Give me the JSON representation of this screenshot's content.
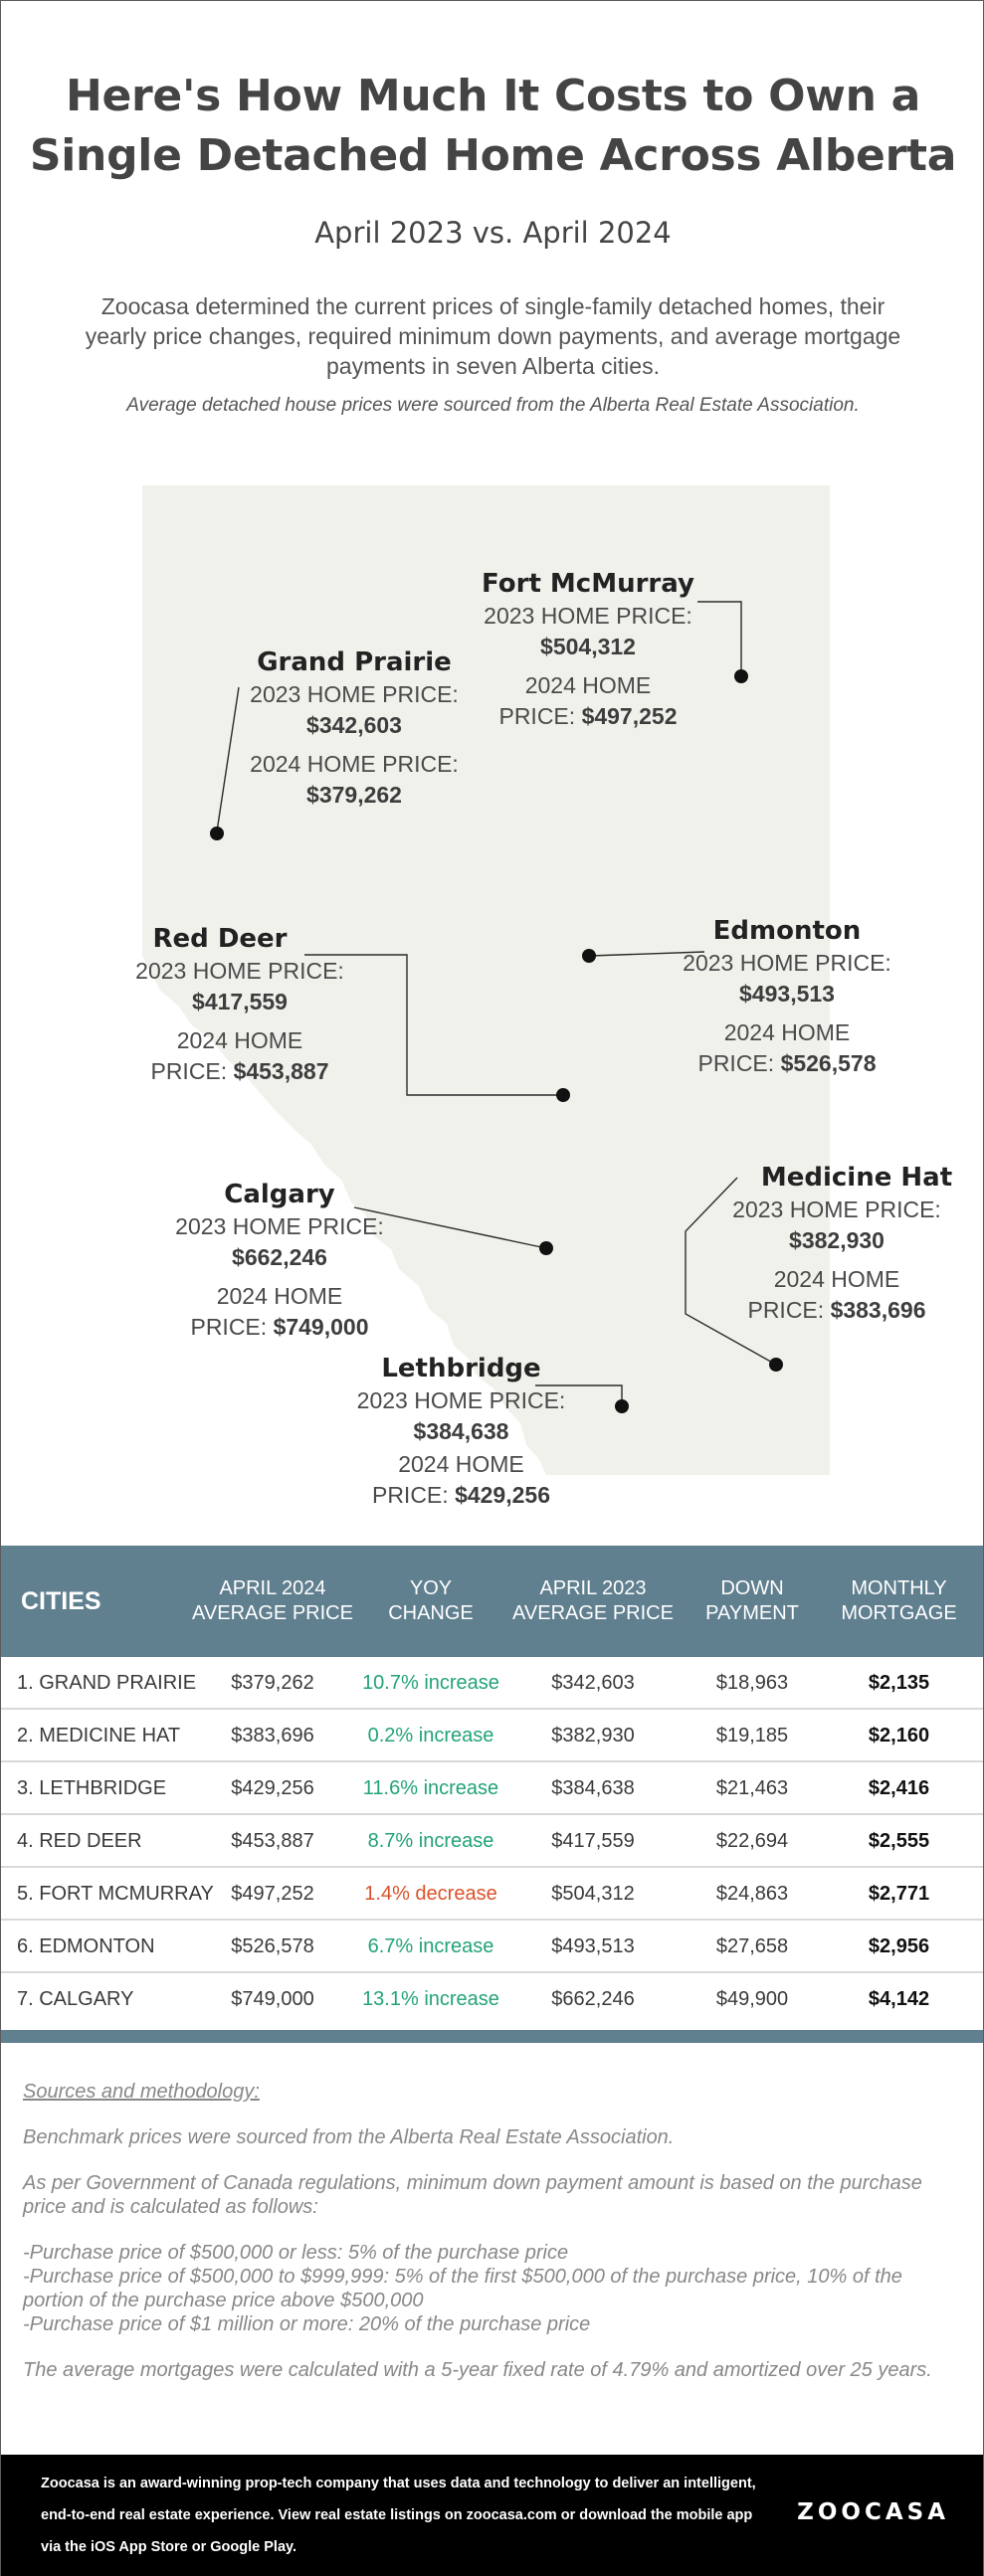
{
  "title": "Here's How Much It Costs to Own a Single Detached Home Across Alberta",
  "subtitle": "April 2023 vs. April 2024",
  "intro": "Zoocasa determined the current prices of single-family detached homes, their yearly price changes, required minimum down payments, and average mortgage payments in seven Alberta cities.",
  "intro_note": "Average detached house prices were sourced from the Alberta Real Estate Association.",
  "map_labels": {
    "label_2023": "2023 HOME PRICE:",
    "label_2024": "2024 HOME PRICE:",
    "label_2024_split_a": "2024 HOME",
    "label_2024_split_b": "PRICE:"
  },
  "cities": {
    "fort_mcmurray": {
      "name": "Fort McMurray",
      "price_2023": "$504,312",
      "price_2024": "$497,252"
    },
    "grand_prairie": {
      "name": "Grand Prairie",
      "price_2023": "$342,603",
      "price_2024": "$379,262"
    },
    "red_deer": {
      "name": "Red Deer",
      "price_2023": "$417,559",
      "price_2024": "$453,887"
    },
    "edmonton": {
      "name": "Edmonton",
      "price_2023": "$493,513",
      "price_2024": "$526,578"
    },
    "calgary": {
      "name": "Calgary",
      "price_2023": "$662,246",
      "price_2024": "$749,000"
    },
    "medicine_hat": {
      "name": "Medicine Hat",
      "price_2023": "$382,930",
      "price_2024": "$383,696"
    },
    "lethbridge": {
      "name": "Lethbridge",
      "price_2023": "$384,638",
      "price_2024": "$429,256"
    }
  },
  "table": {
    "headers": {
      "cities": "CITIES",
      "price_2024_a": "APRIL 2024",
      "price_2024_b": "AVERAGE PRICE",
      "yoy_a": "YOY",
      "yoy_b": "CHANGE",
      "price_2023_a": "APRIL 2023",
      "price_2023_b": "AVERAGE PRICE",
      "down_a": "DOWN",
      "down_b": "PAYMENT",
      "mortgage_a": "MONTHLY",
      "mortgage_b": "MORTGAGE"
    },
    "rows": [
      {
        "city": "1. GRAND PRAIRIE",
        "price_2024": "$379,262",
        "yoy": "10.7% increase",
        "price_2023": "$342,603",
        "down": "$18,963",
        "mortgage": "$2,135"
      },
      {
        "city": "2. MEDICINE HAT",
        "price_2024": "$383,696",
        "yoy": "0.2% increase",
        "price_2023": "$382,930",
        "down": "$19,185",
        "mortgage": "$2,160"
      },
      {
        "city": "3. LETHBRIDGE",
        "price_2024": "$429,256",
        "yoy": "11.6% increase",
        "price_2023": "$384,638",
        "down": "$21,463",
        "mortgage": "$2,416"
      },
      {
        "city": "4. RED DEER",
        "price_2024": "$453,887",
        "yoy": "8.7% increase",
        "price_2023": "$417,559",
        "down": "$22,694",
        "mortgage": "$2,555"
      },
      {
        "city": "5. FORT MCMURRAY",
        "price_2024": "$497,252",
        "yoy": "1.4% decrease",
        "price_2023": "$504,312",
        "down": "$24,863",
        "mortgage": "$2,771"
      },
      {
        "city": "6. EDMONTON",
        "price_2024": "$526,578",
        "yoy": "6.7% increase",
        "price_2023": "$493,513",
        "down": "$27,658",
        "mortgage": "$2,956"
      },
      {
        "city": "7. CALGARY",
        "price_2024": "$749,000",
        "yoy": "13.1% increase",
        "price_2023": "$662,246",
        "down": "$49,900",
        "mortgage": "$4,142"
      }
    ]
  },
  "colors": {
    "increase": "#23a27a",
    "decrease": "#d9532b",
    "header": "#607f8f",
    "map_fill": "#f1f1ec"
  },
  "sources": {
    "heading": "Sources and methodology:",
    "benchmark": "Benchmark prices were sourced from the Alberta Real Estate Association.",
    "regulation": "As per Government of Canada regulations, minimum down payment amount is based on the purchase price and is calculated as follows:",
    "rule_1": "-Purchase price of $500,000 or less: 5% of the purchase price",
    "rule_2": "-Purchase price of $500,000 to $999,999: 5% of the first $500,000 of the purchase price, 10% of the portion of the purchase price above $500,000",
    "rule_3": "-Purchase price of $1 million or more: 20% of the purchase price",
    "mortgage_note": "The average mortgages were calculated with a 5-year fixed rate of 4.79% and amortized over 25 years."
  },
  "footer": {
    "text": "Zoocasa is an award-winning prop-tech company that uses data and technology to deliver an intelligent, end-to-end real estate experience. View real estate listings on zoocasa.com or download the mobile app via the iOS App Store or Google Play.",
    "logo": "ZOOCASA"
  }
}
